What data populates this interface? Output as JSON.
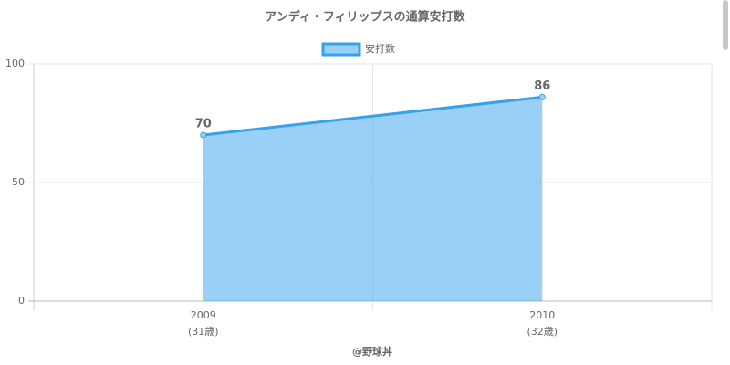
{
  "chart_data": {
    "type": "area",
    "title": "アンディ・フィリップスの通算安打数",
    "categories": [
      "2009",
      "2010"
    ],
    "category_sublabels": [
      "(31歳)",
      "(32歳)"
    ],
    "series": [
      {
        "name": "安打数",
        "color": "#36a2eb",
        "values": [
          70,
          86
        ]
      }
    ],
    "ylim": [
      0,
      100
    ],
    "yticks": [
      0,
      50,
      100
    ],
    "grid": true,
    "legend": "top",
    "source": "@野球丼"
  }
}
